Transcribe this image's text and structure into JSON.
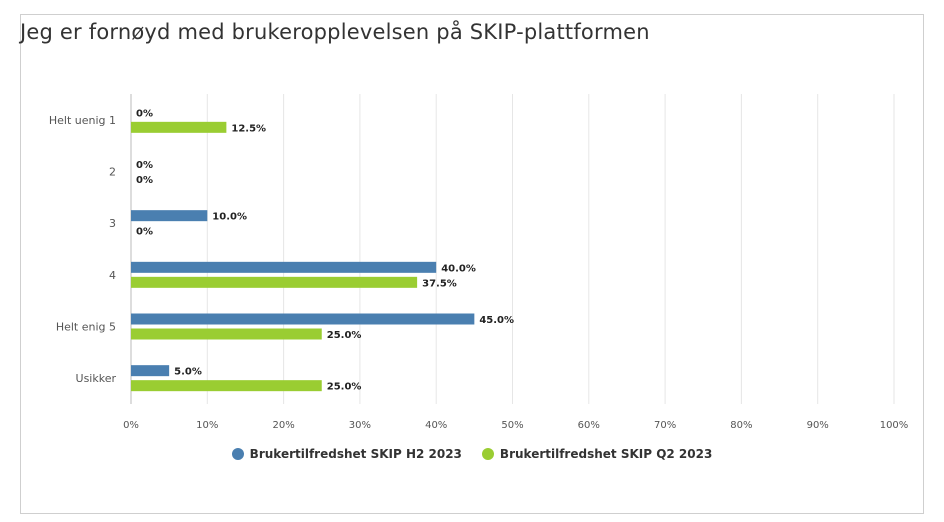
{
  "chart_data": {
    "type": "bar",
    "orientation": "horizontal",
    "title": "Jeg er fornøyd med brukeropplevelsen på SKIP-plattformen",
    "categories": [
      "Helt uenig 1",
      "2",
      "3",
      "4",
      "Helt enig 5",
      "Usikker"
    ],
    "series": [
      {
        "name": "Brukertilfredshet SKIP H2 2023",
        "color": "#4a7fb0",
        "values": [
          0,
          0,
          10.0,
          40.0,
          45.0,
          5.0
        ],
        "labels": [
          "0%",
          "0%",
          "10.0%",
          "40.0%",
          "45.0%",
          "5.0%"
        ]
      },
      {
        "name": "Brukertilfredshet SKIP Q2 2023",
        "color": "#9acd32",
        "values": [
          12.5,
          0,
          0,
          37.5,
          25.0,
          25.0
        ],
        "labels": [
          "12.5%",
          "0%",
          "0%",
          "37.5%",
          "25.0%",
          "25.0%"
        ]
      }
    ],
    "xlim": [
      0,
      100
    ],
    "ticks": [
      "0%",
      "10%",
      "20%",
      "30%",
      "40%",
      "50%",
      "60%",
      "70%",
      "80%",
      "90%",
      "100%"
    ],
    "grid": true,
    "legend": "bottom-center"
  }
}
